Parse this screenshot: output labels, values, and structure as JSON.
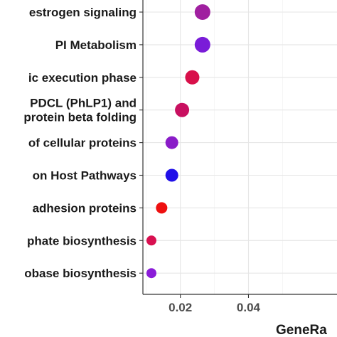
{
  "chart_data": {
    "type": "scatter",
    "title": "",
    "xlabel": "GeneRa",
    "ylabel": "",
    "xlim": [
      0.009,
      0.066
    ],
    "x_ticks": [
      0.02,
      0.04
    ],
    "x_tick_labels": [
      "0.02",
      "0.04"
    ],
    "grid": true,
    "legend": "none",
    "categories": [
      "estrogen signaling",
      "PI Metabolism",
      "ic execution phase",
      "PDCL (PhLP1) and\nprotein beta folding",
      "of cellular proteins",
      "on Host Pathways",
      "adhesion proteins",
      "phate biosynthesis",
      "obase biosynthesis"
    ],
    "points": [
      {
        "category": "estrogen signaling",
        "x": 0.0265,
        "size": 11,
        "color": "#A020A0"
      },
      {
        "category": "PI Metabolism",
        "x": 0.0265,
        "size": 11,
        "color": "#7A1CD8"
      },
      {
        "category": "ic execution phase",
        "x": 0.0235,
        "size": 10,
        "color": "#D8104A"
      },
      {
        "category": "PDCL (PhLP1) and\nprotein beta folding",
        "x": 0.0205,
        "size": 10,
        "color": "#C81060"
      },
      {
        "category": "of cellular proteins",
        "x": 0.0175,
        "size": 9,
        "color": "#8A1CC8"
      },
      {
        "category": "on Host Pathways",
        "x": 0.0175,
        "size": 9,
        "color": "#2010E8"
      },
      {
        "category": "adhesion proteins",
        "x": 0.0145,
        "size": 8,
        "color": "#EE1010"
      },
      {
        "category": "phate biosynthesis",
        "x": 0.0115,
        "size": 7,
        "color": "#D81050"
      },
      {
        "category": "obase biosynthesis",
        "x": 0.0115,
        "size": 7,
        "color": "#8A1CD8"
      }
    ]
  }
}
